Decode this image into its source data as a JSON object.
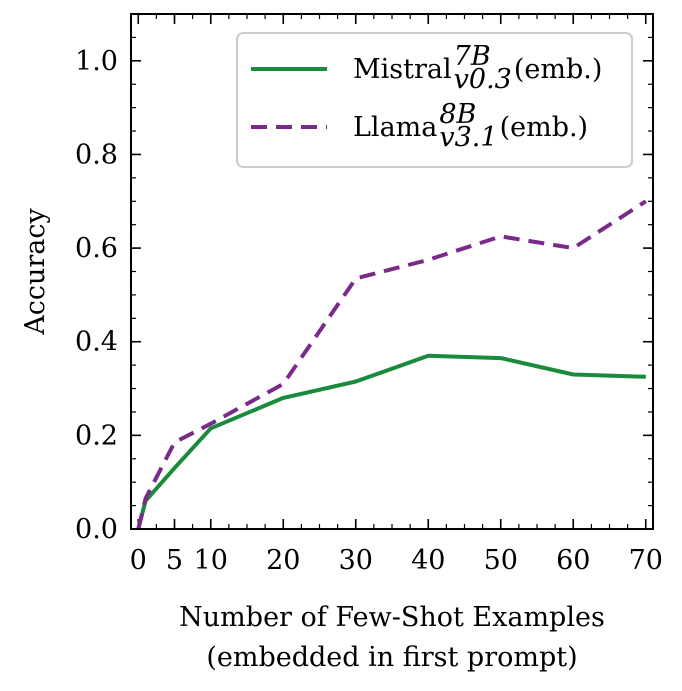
{
  "chart_data": {
    "type": "line",
    "title": "",
    "xlabel": [
      "Number of Few-Shot Examples",
      "(embedded in first prompt)"
    ],
    "ylabel": "Accuracy",
    "xlim": [
      -1,
      71
    ],
    "ylim": [
      0,
      1.1
    ],
    "xticks": [
      0,
      5,
      10,
      20,
      30,
      40,
      50,
      60,
      70
    ],
    "yticks": [
      0.0,
      0.2,
      0.4,
      0.6,
      0.8,
      1.0
    ],
    "xtick_labels": [
      "0",
      "5",
      "10",
      "20",
      "30",
      "40",
      "50",
      "60",
      "70"
    ],
    "ytick_labels": [
      "0.0",
      "0.2",
      "0.4",
      "0.6",
      "0.8",
      "1.0"
    ],
    "grid": false,
    "legend_position": "top-right",
    "series": [
      {
        "name": "Mistral",
        "sup": "7B",
        "sub": "v0.3",
        "suffix": " (emb.)",
        "color": "#1a8a3c",
        "dash": "solid",
        "x": [
          0,
          1,
          5,
          10,
          20,
          30,
          40,
          50,
          60,
          70
        ],
        "values": [
          0.0,
          0.06,
          0.13,
          0.215,
          0.28,
          0.315,
          0.37,
          0.365,
          0.33,
          0.325
        ]
      },
      {
        "name": "Llama",
        "sup": "8B",
        "sub": "v3.1",
        "suffix": " (emb.)",
        "color": "#7b2a8c",
        "dash": "dashed",
        "x": [
          0,
          1,
          5,
          10,
          20,
          30,
          40,
          50,
          60,
          70
        ],
        "values": [
          0.0,
          0.065,
          0.185,
          0.225,
          0.31,
          0.535,
          0.575,
          0.625,
          0.6,
          0.7
        ]
      }
    ]
  }
}
